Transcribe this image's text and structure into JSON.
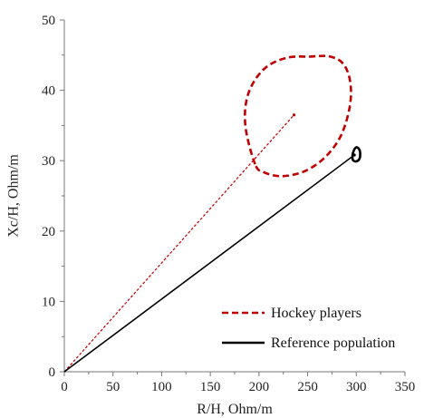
{
  "chart_data": {
    "type": "scatter",
    "title": "",
    "xlabel": "R/H, Ohm/m",
    "ylabel": "Xc/H, Ohm/m",
    "xlim": [
      0,
      350
    ],
    "ylim": [
      0,
      50
    ],
    "xticks": [
      0,
      50,
      100,
      150,
      200,
      250,
      300,
      350
    ],
    "yticks": [
      0,
      10,
      20,
      30,
      40,
      50
    ],
    "grid": false,
    "legend_position": "bottom-right",
    "series": [
      {
        "name": "Hockey players",
        "color": "#c00000",
        "line_style": "dashed",
        "vector": {
          "x": [
            0,
            236
          ],
          "y": [
            0,
            36.5
          ]
        },
        "ellipse_points": {
          "x": [
            196,
            186,
            189,
            205,
            228,
            253,
            273,
            287,
            294,
            293,
            284,
            268,
            247,
            224,
            206,
            196
          ],
          "y": [
            29.5,
            35,
            39.5,
            43,
            44.6,
            44.8,
            44.8,
            43.7,
            41,
            37.5,
            33.5,
            30.5,
            28.5,
            27.8,
            28.3,
            29.5
          ]
        }
      },
      {
        "name": "Reference population",
        "color": "#000000",
        "line_style": "solid",
        "vector": {
          "x": [
            0,
            298
          ],
          "y": [
            0,
            30.8
          ]
        },
        "ellipse_points": {
          "x": [
            296,
            297,
            300,
            303,
            304,
            303,
            300,
            297,
            296
          ],
          "y": [
            30.4,
            31.3,
            31.9,
            31.6,
            30.9,
            30.2,
            29.9,
            30.0,
            30.4
          ]
        }
      }
    ]
  }
}
